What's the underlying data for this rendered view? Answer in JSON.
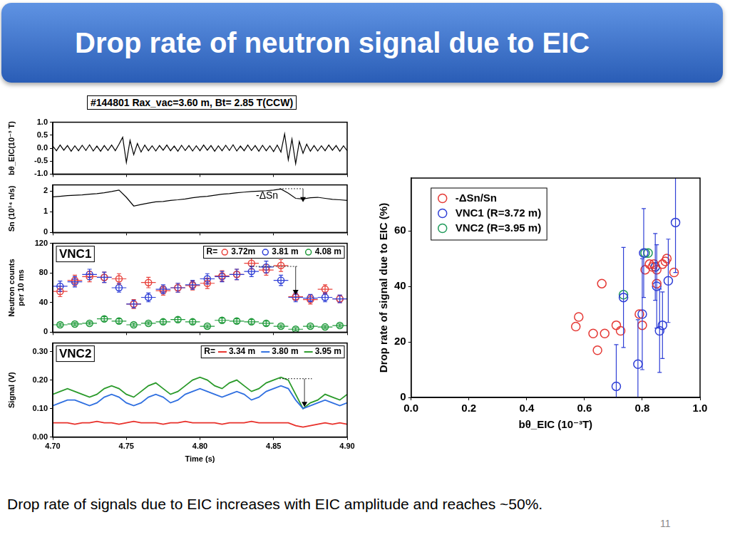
{
  "slide": {
    "title": "Drop rate of neutron signal due to EIC",
    "caption": "Drop rate of signals due to EIC increases with EIC amplitude and reaches ~50%.",
    "page": 11
  },
  "chart_data": [
    {
      "type": "line",
      "title": "#144801 Rax_vac=3.60 m, Bt= 2.85 T(CCW)",
      "ylabel": "bθ_EIC(10⁻³ T)",
      "x": [
        4.7,
        4.7025,
        4.705,
        4.7075,
        4.71,
        4.7125,
        4.715,
        4.7175,
        4.72,
        4.7225,
        4.725,
        4.7275,
        4.73,
        4.7325,
        4.735,
        4.7375,
        4.74,
        4.7425,
        4.745,
        4.7475,
        4.75,
        4.7525,
        4.755,
        4.7575,
        4.76,
        4.7625,
        4.765,
        4.7675,
        4.77,
        4.7725,
        4.775,
        4.7775,
        4.78,
        4.7825,
        4.785,
        4.7875,
        4.79,
        4.7925,
        4.795,
        4.7975,
        4.8,
        4.8025,
        4.805,
        4.8075,
        4.81,
        4.8125,
        4.815,
        4.8175,
        4.82,
        4.8225,
        4.825,
        4.8275,
        4.83,
        4.8325,
        4.835,
        4.8375,
        4.84,
        4.8425,
        4.845,
        4.8475,
        4.85,
        4.8525,
        4.855,
        4.8575,
        4.86,
        4.8625,
        4.865,
        4.8675,
        4.87,
        4.8725,
        4.875,
        4.8775,
        4.88,
        4.8825,
        4.885,
        4.8875,
        4.89,
        4.8925,
        4.895,
        4.8975,
        4.9
      ],
      "values": [
        0.08,
        -0.1,
        0.12,
        -0.08,
        0.1,
        -0.12,
        0.09,
        -0.1,
        0.11,
        -0.09,
        0.13,
        -0.11,
        0.08,
        -0.12,
        0.1,
        -0.09,
        0.12,
        -0.1,
        0.15,
        0.42,
        -0.55,
        0.3,
        -0.25,
        0.18,
        -0.15,
        0.12,
        -0.1,
        0.09,
        -0.11,
        0.1,
        -0.08,
        0.12,
        -0.1,
        0.08,
        -0.12,
        0.11,
        -0.09,
        0.1,
        -0.11,
        0.09,
        -0.1,
        0.12,
        -0.08,
        0.1,
        -0.12,
        0.09,
        -0.1,
        0.11,
        -0.09,
        0.13,
        -0.11,
        0.08,
        -0.1,
        0.12,
        -0.09,
        0.1,
        -0.12,
        0.11,
        -0.1,
        0.09,
        -0.13,
        0.12,
        -0.15,
        0.55,
        -0.45,
        0.35,
        -0.6,
        0.25,
        -0.2,
        0.15,
        -0.12,
        0.1,
        -0.11,
        0.09,
        -0.1,
        0.12,
        -0.08,
        0.1,
        -0.12,
        0.09,
        -0.1
      ],
      "color": "#000000",
      "xlim": [
        4.7,
        4.9
      ],
      "xticks": [
        4.7,
        4.75,
        4.8,
        4.85,
        4.9
      ],
      "ylim": [
        -1,
        1
      ],
      "yticks": [
        {
          "value": -1,
          "label": "-1.0"
        },
        -0.5,
        {
          "value": 0,
          "label": "0.0"
        },
        0.5,
        {
          "value": 1,
          "label": "1.0"
        }
      ],
      "tick_labels": "y",
      "grid": false
    },
    {
      "type": "line",
      "ylabel": "Sn (10¹⁴ n/s)",
      "annotations": [
        "-ΔSn"
      ],
      "x": [
        4.7,
        4.705,
        4.71,
        4.715,
        4.72,
        4.725,
        4.73,
        4.735,
        4.74,
        4.745,
        4.75,
        4.755,
        4.76,
        4.765,
        4.77,
        4.775,
        4.78,
        4.785,
        4.79,
        4.795,
        4.8,
        4.805,
        4.81,
        4.815,
        4.82,
        4.825,
        4.83,
        4.835,
        4.84,
        4.845,
        4.85,
        4.855,
        4.86,
        4.865,
        4.87,
        4.875,
        4.88,
        4.885,
        4.89,
        4.895,
        4.9
      ],
      "values": [
        1.72,
        1.75,
        1.78,
        1.8,
        1.82,
        1.85,
        1.88,
        1.92,
        1.98,
        2.05,
        1.7,
        1.28,
        1.35,
        1.42,
        1.48,
        1.5,
        1.55,
        1.58,
        1.62,
        1.68,
        1.72,
        1.75,
        1.8,
        1.85,
        1.88,
        1.92,
        1.95,
        1.98,
        2.0,
        2.02,
        2.05,
        2.1,
        1.9,
        1.65,
        1.62,
        1.68,
        1.7,
        1.65,
        1.6,
        1.58,
        1.55
      ],
      "color": "#000000",
      "xlim": [
        4.7,
        4.9
      ],
      "xticks": [
        4.7,
        4.75,
        4.8,
        4.85,
        4.9
      ],
      "ylim": [
        0,
        2.3
      ],
      "yticks": [
        0,
        1,
        2
      ],
      "tick_labels": "y",
      "grid": false
    },
    {
      "type": "scatter",
      "panel_label": "VNC1",
      "ylabel": [
        "Neutron counts",
        "per 10 ms"
      ],
      "x": [
        4.705,
        4.715,
        4.725,
        4.735,
        4.745,
        4.755,
        4.765,
        4.775,
        4.785,
        4.795,
        4.805,
        4.815,
        4.825,
        4.835,
        4.845,
        4.855,
        4.865,
        4.875,
        4.885,
        4.895
      ],
      "x_errors": [
        0.005,
        0.005,
        0.005,
        0.005,
        0.005,
        0.005,
        0.005,
        0.005,
        0.005,
        0.005,
        0.005,
        0.005,
        0.005,
        0.005,
        0.005,
        0.005,
        0.005,
        0.005,
        0.005,
        0.005
      ],
      "series": [
        {
          "name": "3.72m",
          "color": "#e8423c",
          "marker": "open_circle",
          "values": [
            55,
            70,
            75,
            74,
            72,
            38,
            67,
            56,
            60,
            63,
            66,
            76,
            78,
            93,
            84,
            90,
            48,
            44,
            58,
            45
          ],
          "errors": [
            7,
            7,
            7,
            7,
            7,
            6,
            7,
            6,
            6,
            6,
            7,
            7,
            7,
            8,
            7,
            8,
            5,
            6,
            6,
            5
          ]
        },
        {
          "name": "3.81 m",
          "color": "#2f3fd6",
          "marker": "open_circle",
          "values": [
            62,
            68,
            78,
            74,
            60,
            38,
            47,
            58,
            60,
            64,
            72,
            75,
            78,
            82,
            88,
            70,
            47,
            46,
            47,
            45
          ],
          "errors": [
            7,
            7,
            7,
            7,
            6,
            5,
            6,
            6,
            6,
            6,
            7,
            7,
            7,
            7,
            8,
            7,
            6,
            5,
            6,
            5
          ]
        },
        {
          "name": "4.08 m",
          "color": "#1f9a3a",
          "marker": "open_circle",
          "values": [
            10,
            11,
            12,
            18,
            15,
            10,
            12,
            14,
            17,
            14,
            8,
            16,
            15,
            14,
            12,
            8,
            4,
            8,
            7,
            9
          ],
          "errors": [
            2,
            2,
            2,
            3,
            3,
            2,
            2,
            3,
            3,
            3,
            2,
            3,
            3,
            3,
            3,
            2,
            2,
            2,
            2,
            2
          ]
        }
      ],
      "legend": "top-right",
      "legend_title": "R=",
      "xlim": [
        4.7,
        4.9
      ],
      "xticks": [
        4.7,
        4.75,
        4.8,
        4.85,
        4.9
      ],
      "ylim": [
        0,
        120
      ],
      "yticks": [
        0,
        40,
        80,
        120
      ],
      "tick_labels": "y",
      "grid": false
    },
    {
      "type": "line",
      "panel_label": "VNC2",
      "ylabel": "Signal (V)",
      "xlabel": "Time (s)",
      "x": [
        4.7,
        4.705,
        4.71,
        4.715,
        4.72,
        4.725,
        4.73,
        4.735,
        4.74,
        4.745,
        4.75,
        4.755,
        4.76,
        4.765,
        4.77,
        4.775,
        4.78,
        4.785,
        4.79,
        4.795,
        4.8,
        4.805,
        4.81,
        4.815,
        4.82,
        4.825,
        4.83,
        4.835,
        4.84,
        4.845,
        4.85,
        4.855,
        4.86,
        4.865,
        4.87,
        4.875,
        4.88,
        4.885,
        4.89,
        4.895,
        4.9
      ],
      "series": [
        {
          "name": "3.34 m",
          "color": "#e8302a",
          "values": [
            0.05,
            0.05,
            0.05,
            0.045,
            0.05,
            0.05,
            0.055,
            0.05,
            0.05,
            0.045,
            0.05,
            0.055,
            0.05,
            0.05,
            0.05,
            0.045,
            0.05,
            0.05,
            0.055,
            0.05,
            0.05,
            0.05,
            0.05,
            0.045,
            0.05,
            0.05,
            0.05,
            0.055,
            0.05,
            0.05,
            0.05,
            0.05,
            0.05,
            0.04,
            0.035,
            0.04,
            0.045,
            0.05,
            0.045,
            0.05,
            0.045
          ]
        },
        {
          "name": "3.80 m",
          "color": "#2f6fe0",
          "values": [
            0.11,
            0.12,
            0.13,
            0.13,
            0.12,
            0.11,
            0.12,
            0.14,
            0.15,
            0.14,
            0.12,
            0.11,
            0.12,
            0.14,
            0.15,
            0.14,
            0.12,
            0.13,
            0.15,
            0.16,
            0.17,
            0.16,
            0.15,
            0.14,
            0.15,
            0.16,
            0.15,
            0.13,
            0.14,
            0.16,
            0.17,
            0.18,
            0.17,
            0.13,
            0.1,
            0.11,
            0.12,
            0.13,
            0.12,
            0.11,
            0.12
          ]
        },
        {
          "name": "3.95 m",
          "color": "#2a9a2a",
          "values": [
            0.15,
            0.16,
            0.17,
            0.16,
            0.15,
            0.14,
            0.15,
            0.17,
            0.18,
            0.17,
            0.15,
            0.14,
            0.16,
            0.18,
            0.19,
            0.17,
            0.15,
            0.16,
            0.18,
            0.2,
            0.21,
            0.2,
            0.18,
            0.17,
            0.19,
            0.2,
            0.18,
            0.16,
            0.17,
            0.19,
            0.2,
            0.21,
            0.2,
            0.15,
            0.1,
            0.12,
            0.13,
            0.15,
            0.14,
            0.13,
            0.15
          ]
        }
      ],
      "legend": "top-right",
      "legend_title": "R=",
      "xlim": [
        4.7,
        4.9
      ],
      "xticks": [
        {
          "value": 4.7,
          "label": "4.70"
        },
        4.75,
        {
          "value": 4.8,
          "label": "4.80"
        },
        4.85,
        {
          "value": 4.9,
          "label": "4.90"
        }
      ],
      "ylim": [
        0,
        0.33
      ],
      "yticks": [
        {
          "value": 0,
          "label": "0.00"
        },
        {
          "value": 0.1,
          "label": "0.10"
        },
        {
          "value": 0.2,
          "label": "0.20"
        },
        {
          "value": 0.3,
          "label": "0.30"
        }
      ],
      "grid": false
    },
    {
      "type": "scatter",
      "xlabel": "bθ_EIC (10⁻³T)",
      "ylabel": "Drop rate of signal due to EIC (%)",
      "series": [
        {
          "name": "-ΔSn/Sn",
          "color": "#e53935",
          "marker": "open_circle",
          "x": [
            0.57,
            0.58,
            0.63,
            0.645,
            0.66,
            0.67,
            0.71,
            0.725,
            0.79,
            0.8,
            0.81,
            0.825,
            0.835,
            0.84,
            0.85,
            0.85,
            0.87,
            0.88,
            0.885,
            0.91
          ],
          "values": [
            25.5,
            29,
            23,
            17,
            41,
            23,
            26,
            24,
            30,
            26,
            46,
            48,
            47,
            48,
            46,
            41,
            48,
            49,
            50,
            45
          ]
        },
        {
          "name": "VNC1 (R=3.72 m)",
          "color": "#2f3fd6",
          "marker": "open_circle",
          "x": [
            0.71,
            0.735,
            0.785,
            0.8,
            0.805,
            0.845,
            0.85,
            0.86,
            0.87,
            0.89,
            0.915
          ],
          "values": [
            4,
            36,
            12,
            30,
            52,
            47,
            40,
            24,
            26,
            42,
            63
          ],
          "errors": [
            15,
            18,
            16,
            20,
            16,
            12,
            15,
            15,
            12,
            15,
            18
          ]
        },
        {
          "name": "VNC2 (R=3.95 m)",
          "color": "#1f9a5a",
          "marker": "open_circle",
          "x": [
            0.735,
            0.81,
            0.82,
            0.845
          ],
          "values": [
            37,
            52,
            52,
            47
          ]
        }
      ],
      "legend": "top-left",
      "xlim": [
        0,
        1
      ],
      "xticks": [
        {
          "value": 0,
          "label": "0.0"
        },
        0.2,
        0.4,
        0.6,
        0.8,
        {
          "value": 1,
          "label": "1.0"
        }
      ],
      "ylim": [
        0,
        79
      ],
      "yticks": [
        0,
        20,
        40,
        60
      ],
      "grid": false
    }
  ]
}
